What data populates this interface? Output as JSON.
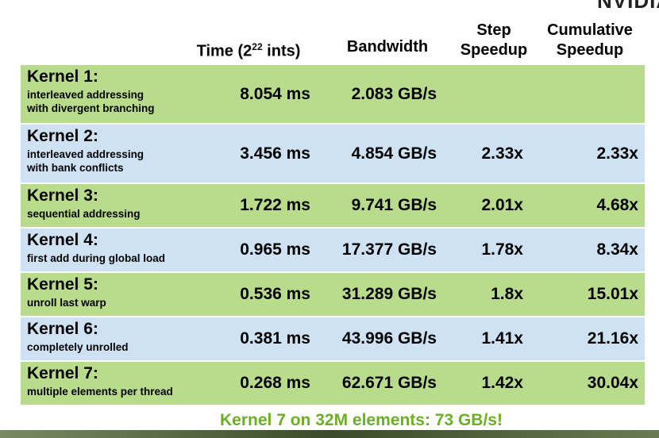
{
  "logo": "NVIDIA",
  "header": {
    "time": {
      "before": "Time (2",
      "sup": "22",
      "after": " ints)"
    },
    "bandwidth": "Bandwidth",
    "step": [
      "Step",
      "Speedup"
    ],
    "cumulative": [
      "Cumulative",
      "Speedup"
    ]
  },
  "table": {
    "rows": [
      {
        "name": "Kernel 1:",
        "description": [
          "interleaved addressing",
          "with divergent branching"
        ],
        "time": "8.054 ms",
        "bandwidth": "2.083 GB/s",
        "step": null,
        "cumulative": null
      },
      {
        "name": "Kernel 2:",
        "description": [
          "interleaved addressing",
          "with bank conflicts"
        ],
        "time": "3.456 ms",
        "bandwidth": "4.854 GB/s",
        "step": "2.33x",
        "cumulative": "2.33x"
      },
      {
        "name": "Kernel 3:",
        "description": [
          "sequential addressing"
        ],
        "time": "1.722 ms",
        "bandwidth": "9.741 GB/s",
        "step": "2.01x",
        "cumulative": "4.68x"
      },
      {
        "name": "Kernel 4:",
        "description": [
          "first add during global load"
        ],
        "time": "0.965 ms",
        "bandwidth": "17.377 GB/s",
        "step": "1.78x",
        "cumulative": "8.34x"
      },
      {
        "name": "Kernel 5:",
        "description": [
          "unroll last warp"
        ],
        "time": "0.536 ms",
        "bandwidth": "31.289 GB/s",
        "step": "1.8x",
        "cumulative": "15.01x"
      },
      {
        "name": "Kernel 6:",
        "description": [
          "completely unrolled"
        ],
        "time": "0.381 ms",
        "bandwidth": "43.996 GB/s",
        "step": "1.41x",
        "cumulative": "21.16x"
      },
      {
        "name": "Kernel 7:",
        "description": [
          "multiple elements per thread"
        ],
        "time": "0.268 ms",
        "bandwidth": "62.671 GB/s",
        "step": "1.42x",
        "cumulative": "30.04x"
      }
    ]
  },
  "footer": "Kernel 7 on 32M elements: 73 GB/s!"
}
